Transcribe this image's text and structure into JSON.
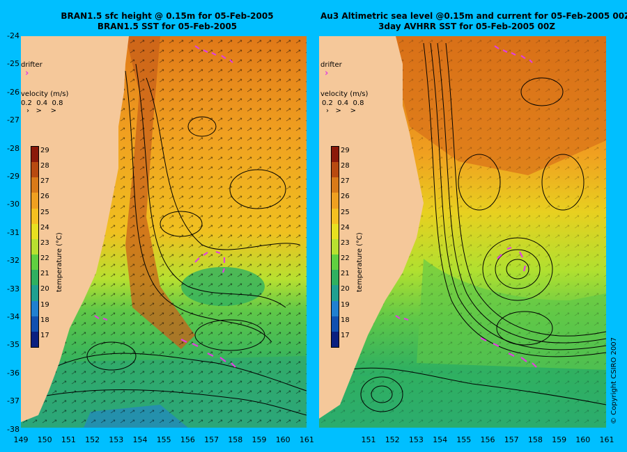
{
  "left_panel": {
    "title_line1": "BRAN1.5 sfc height @ 0.15m for 05-Feb-2005",
    "title_line2": "BRAN1.5 SST for 05-Feb-2005",
    "drifter_label": "drifter",
    "velocity_label": "velocity (m/s)",
    "velocity_values": "0.2  0.4  0.8",
    "colorbar_title": "temperature (°C)"
  },
  "right_panel": {
    "title_line1": "Au3 Altimetric sea level  @0.15m and current for 05-Feb-2005 00Z",
    "title_line2": "3day AVHRR SST for 05-Feb-2005 00Z",
    "drifter_label": "drifter",
    "velocity_label": "velocity (m/s)",
    "velocity_values": "0.2  0.4  0.8",
    "colorbar_title": "temperature (°C)"
  },
  "latitude_ticks": [
    "-24",
    "-25",
    "-26",
    "-27",
    "-28",
    "-29",
    "-30",
    "-31",
    "-32",
    "-33",
    "-34",
    "-35",
    "-36",
    "-37",
    "-38"
  ],
  "longitude_ticks_left": [
    "149",
    "150",
    "151",
    "152",
    "153",
    "154",
    "155",
    "156",
    "157",
    "158",
    "159",
    "160",
    "161"
  ],
  "longitude_ticks_right": [
    "151",
    "152",
    "153",
    "154",
    "155",
    "156",
    "157",
    "158",
    "159",
    "160",
    "161"
  ],
  "colorbar_ticks": [
    "29",
    "28",
    "27",
    "26",
    "25",
    "24",
    "23",
    "22",
    "21",
    "20",
    "19",
    "18",
    "17"
  ],
  "colorbar_colors": [
    "#8b1a0a",
    "#b84a10",
    "#d97a18",
    "#f0a020",
    "#f5c020",
    "#e8e020",
    "#b8e030",
    "#60d040",
    "#30b060",
    "#20a090",
    "#2080d0",
    "#1050b0",
    "#0a2080"
  ],
  "copyright": "© Copyright CSIRO 2007",
  "colors": {
    "background": "#00bfff",
    "land": "#f5c89a",
    "drifter": "#e040e0"
  }
}
